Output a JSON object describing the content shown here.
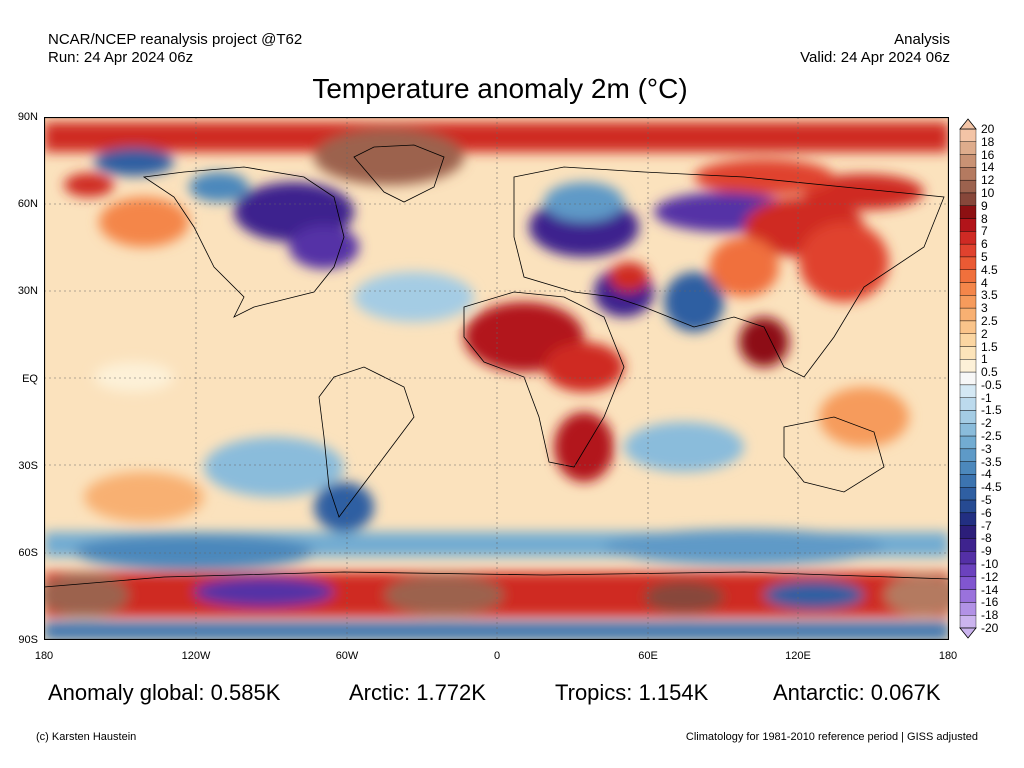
{
  "header": {
    "source": "NCAR/NCEP reanalysis project @T62",
    "run": "Run: 24 Apr 2024 06z",
    "product": "Analysis",
    "valid": "Valid: 24 Apr 2024 06z"
  },
  "title": "Temperature anomaly 2m (°C)",
  "lat_labels": [
    "90N",
    "60N",
    "30N",
    "EQ",
    "30S",
    "60S",
    "90S"
  ],
  "lon_labels": [
    "180",
    "120W",
    "60W",
    "0",
    "60E",
    "120E",
    "180"
  ],
  "colorbar": {
    "labels": [
      "20",
      "18",
      "16",
      "14",
      "12",
      "10",
      "9",
      "8",
      "7",
      "6",
      "5",
      "4.5",
      "4",
      "3.5",
      "3",
      "2.5",
      "2",
      "1.5",
      "1",
      "0.5",
      "-0.5",
      "-1",
      "-1.5",
      "-2",
      "-2.5",
      "-3",
      "-3.5",
      "-4",
      "-4.5",
      "-5",
      "-6",
      "-7",
      "-8",
      "-9",
      "-10",
      "-12",
      "-14",
      "-16",
      "-18",
      "-20"
    ],
    "colors": [
      "#f3c4a6",
      "#deac8c",
      "#c99274",
      "#b47a60",
      "#9c624e",
      "#87473a",
      "#8d1012",
      "#b2141a",
      "#cf2a24",
      "#e0422e",
      "#ea5a34",
      "#f0703c",
      "#f4864a",
      "#f69b5c",
      "#f8b072",
      "#fac48a",
      "#fbd6a2",
      "#fce4ba",
      "#fdf1d8",
      "#f7f7f7",
      "#d4e8f4",
      "#bcdaed",
      "#a4cce4",
      "#8abcdb",
      "#72acd2",
      "#5e9ac7",
      "#4c88bc",
      "#3c74b0",
      "#2f5fa2",
      "#264a92",
      "#222f82",
      "#2c1e7a",
      "#3e238e",
      "#5430a6",
      "#6b42be",
      "#8156d0",
      "#9a72dc",
      "#b292e6",
      "#cbb4ef"
    ]
  },
  "stats": {
    "global": "Anomaly global: 0.585K",
    "arctic": "Arctic: 1.772K",
    "tropics": "Tropics: 1.154K",
    "antarctic": "Antarctic: 0.067K"
  },
  "footer": {
    "credit": "(c) Karsten Haustein",
    "climatology": "Climatology for 1981-2010 reference period | GISS adjusted"
  }
}
